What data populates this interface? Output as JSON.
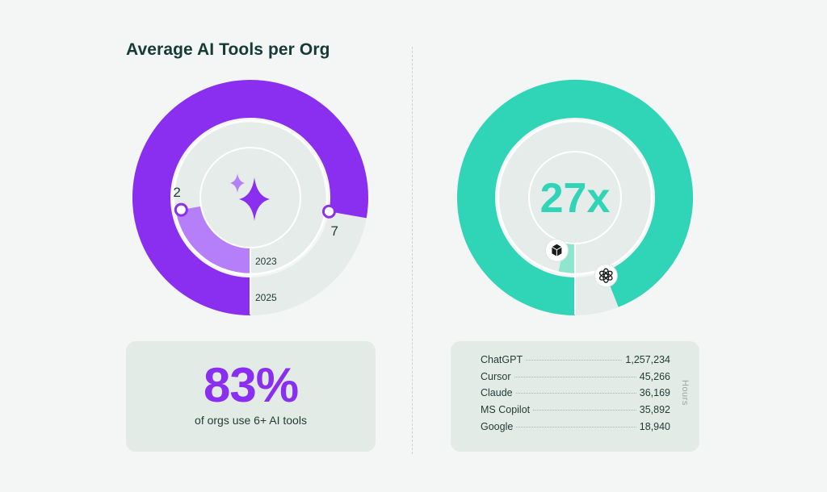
{
  "title": "Average AI Tools per Org",
  "chart_data": [
    {
      "type": "radial-bar",
      "title": "Average AI Tools per Org",
      "series": [
        {
          "name": "2023",
          "value": 2,
          "color": "#b47ff9"
        },
        {
          "name": "2025",
          "value": 7,
          "color": "#8a2ff0"
        }
      ],
      "scale_max": 9,
      "center_icon": "sparkle-icon"
    },
    {
      "type": "radial-bar",
      "center_label": "27x",
      "series": [
        {
          "name": "ChatGPT",
          "icon": "chatgpt-icon",
          "color": "#30d4b6",
          "fraction": 0.94
        },
        {
          "name": "Cursor",
          "icon": "cursor-icon",
          "color": "#8ee6cf",
          "fraction": 0.035
        }
      ]
    }
  ],
  "stat": {
    "value": "83%",
    "caption": "of orgs use 6+ AI tools"
  },
  "hours": {
    "axis_label": "Hours",
    "rows": [
      {
        "name": "ChatGPT",
        "value": "1,257,234"
      },
      {
        "name": "Cursor",
        "value": "45,266"
      },
      {
        "name": "Claude",
        "value": "36,169"
      },
      {
        "name": "MS Copilot",
        "value": "35,892"
      },
      {
        "name": "Google",
        "value": "18,940"
      }
    ]
  }
}
